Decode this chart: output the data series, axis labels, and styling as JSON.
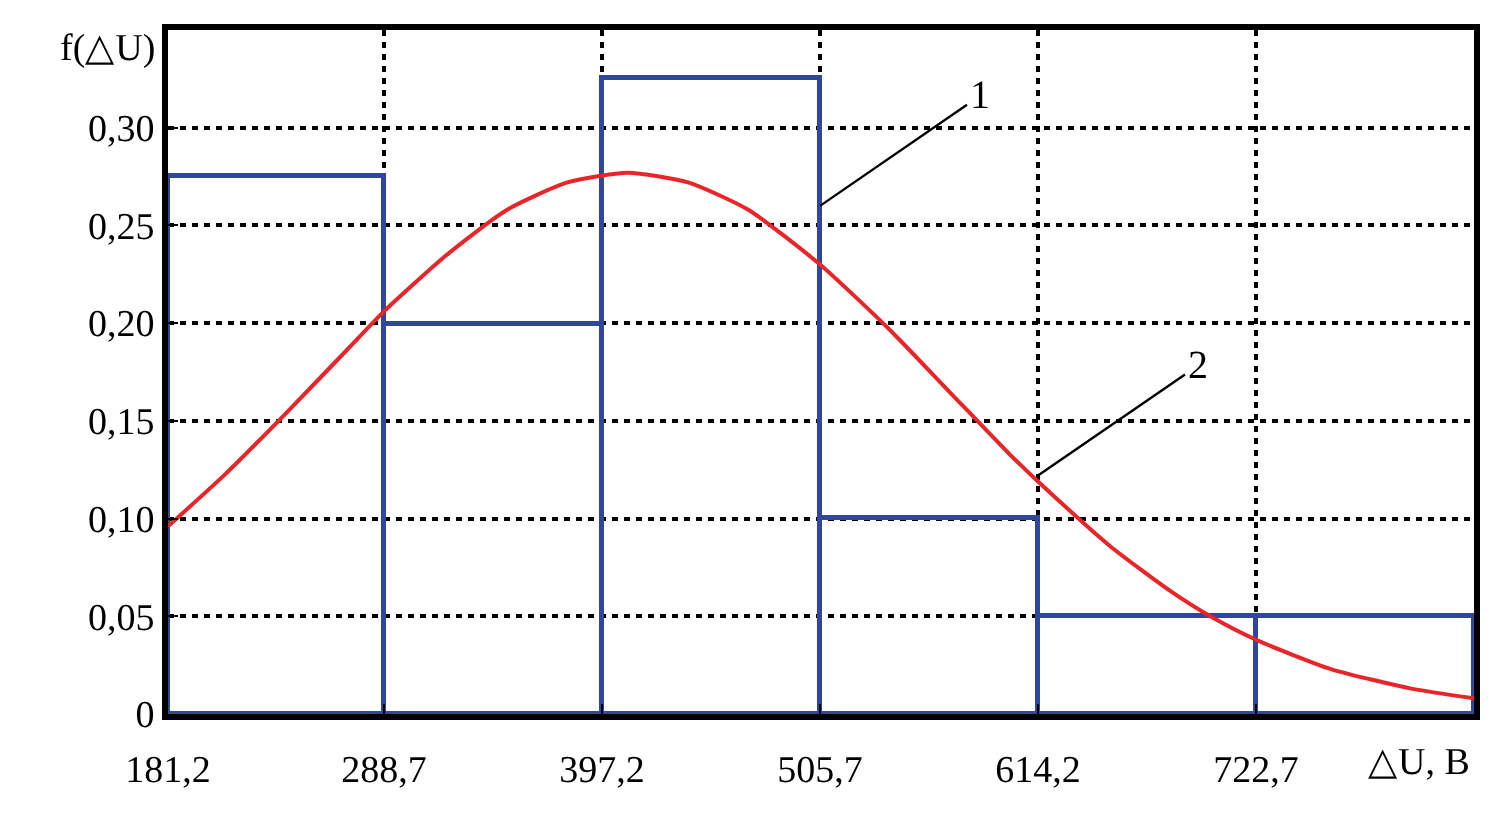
{
  "chart_data": {
    "type": "histogram",
    "xlabel": "△U, B",
    "ylabel": "f(△U)",
    "bins": [
      181.2,
      288.7,
      397.2,
      505.7,
      614.2,
      722.7,
      831.2
    ],
    "series": [
      {
        "color": "#30479c",
        "values": [
          0.275,
          0.2,
          0.325,
          0.1,
          0.05,
          0.05
        ]
      },
      {
        "type": "line",
        "color": "#e8262a",
        "x": [
          181.2,
          210,
          240,
          270,
          288.7,
          320,
          350,
          380,
          410,
          440,
          470,
          505.7,
          540,
          570,
          600,
          614.2,
          650,
          680,
          700,
          722.7,
          760,
          800,
          831.2
        ],
        "values": [
          0.096,
          0.123,
          0.154,
          0.186,
          0.206,
          0.235,
          0.258,
          0.272,
          0.277,
          0.272,
          0.258,
          0.23,
          0.197,
          0.165,
          0.133,
          0.119,
          0.086,
          0.063,
          0.05,
          0.038,
          0.023,
          0.013,
          0.008
        ]
      }
    ],
    "xlim": [
      181.2,
      831.2
    ],
    "xticks": [
      {
        "value": 181.2,
        "label": "181,2"
      },
      {
        "value": 288.7,
        "label": "288,7"
      },
      {
        "value": 397.2,
        "label": "397,2"
      },
      {
        "value": 505.7,
        "label": "505,7"
      },
      {
        "value": 614.2,
        "label": "614,2"
      },
      {
        "value": 722.7,
        "label": "722,7"
      }
    ],
    "ylim": [
      0,
      0.35
    ],
    "yticks": [
      {
        "value": 0,
        "label": "0"
      },
      {
        "value": 0.05,
        "label": "0,05"
      },
      {
        "value": 0.1,
        "label": "0,10"
      },
      {
        "value": 0.15,
        "label": "0,15"
      },
      {
        "value": 0.2,
        "label": "0,20"
      },
      {
        "value": 0.25,
        "label": "0,25"
      },
      {
        "value": 0.3,
        "label": "0,30"
      },
      {
        "value": 0.35,
        "label": null
      }
    ],
    "grid": true,
    "annotations": [
      {
        "text": "1",
        "x": 505.7,
        "y": 0.26
      },
      {
        "text": "2",
        "x": 614.2,
        "y": 0.122
      }
    ]
  }
}
